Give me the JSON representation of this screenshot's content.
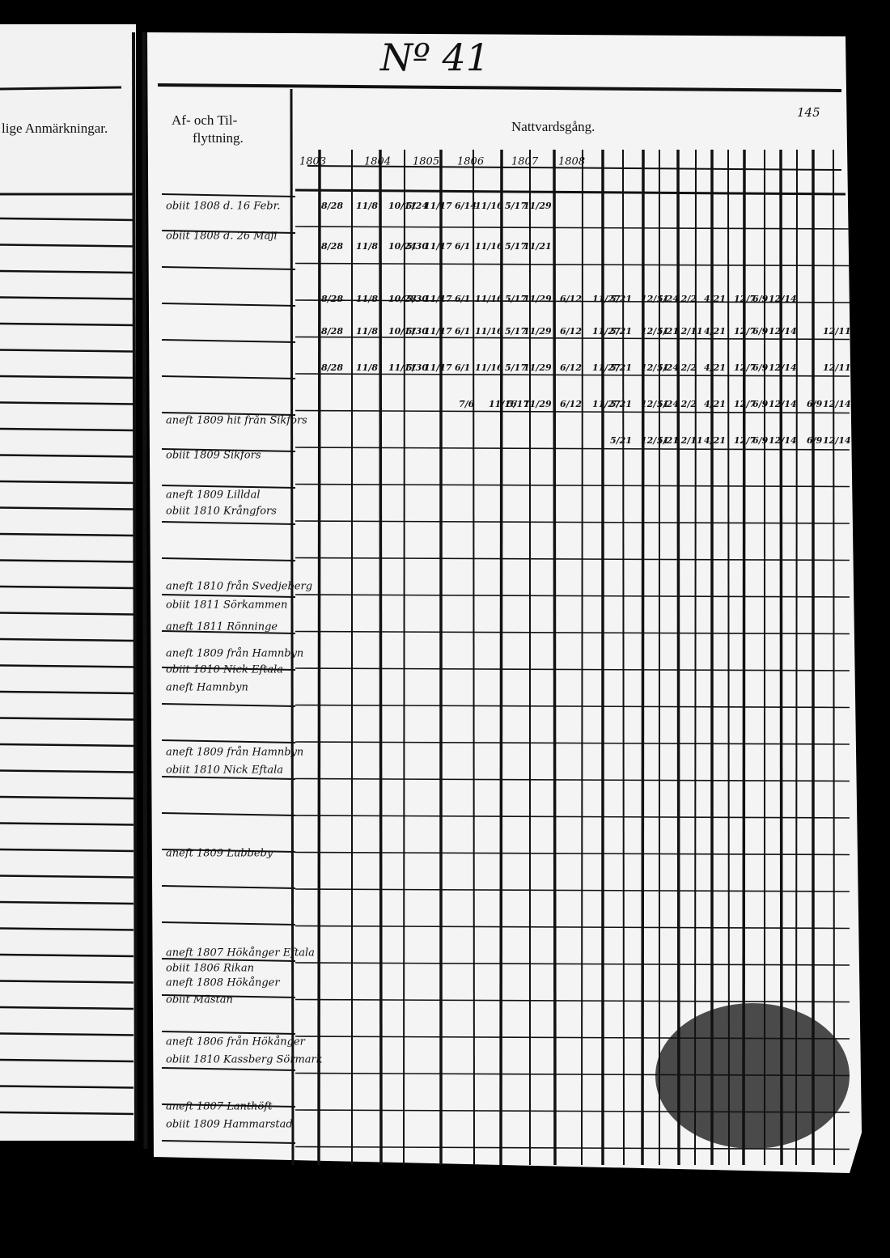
{
  "page_number": "Nº 41",
  "folio": "145",
  "left_page": {
    "heading": "lige Anmärkningar."
  },
  "right_page": {
    "moving_heading": [
      "Af- och Til-",
      "flyttning."
    ],
    "communion_heading": "Nattvardsgång.",
    "years": [
      "1803",
      "1804",
      "1805",
      "1806",
      "1807",
      "1808"
    ],
    "entries": [
      "obiit 1808 d. 16 Febr.",
      "obiit 1808 d. 26 Maji",
      "aneft 1809 hit från Sikfors",
      "obiit 1809 Sikfors",
      "aneft 1809 Lilldal",
      "obiit 1810 Krångfors",
      "aneft 1810 från Svedjeberg",
      "obiit 1811 Sörkammen",
      "aneft 1811 Rönninge",
      "aneft 1809 från Hamnbyn",
      "obiit 1810 Nick Eftala",
      "aneft Hamnbyn",
      "aneft 1809 från Hamnbyn",
      "obiit 1810 Nick Eftala",
      "aneft 1809 Lubbeby",
      "aneft 1807 Hökånger Eftala",
      "obiit 1806 Rikan",
      "aneft 1808 Hökånger",
      "obiit Mästan",
      "aneft 1806 från Hökånger",
      "obiit 1810 Kassberg Sörmark",
      "aneft 1807 Lanthöft",
      "obiit 1809 Hammarstad"
    ],
    "communion_rows": [
      [
        "8/28",
        "11/8",
        "10/11",
        "5/24",
        "11/17",
        "6/14",
        "11/16",
        "5/17",
        "11/29"
      ],
      [
        "8/28",
        "11/8",
        "10/24",
        "5/30",
        "11/17",
        "6/1",
        "11/16",
        "5/17",
        "11/21"
      ],
      [
        "8/28",
        "11/8",
        "10/28",
        "5/30",
        "11/17",
        "6/1",
        "11/16",
        "5/17",
        "11/29",
        "6/12",
        "11/27",
        "5/21",
        "12/11",
        "5/24",
        "12/2",
        "4/21",
        "12/7",
        "6/9",
        "12/14"
      ],
      [
        "8/28",
        "11/8",
        "10/11",
        "5/30",
        "11/17",
        "6/1",
        "11/16",
        "5/17",
        "11/29",
        "6/12",
        "11/27",
        "5/21",
        "12/11",
        "5/21",
        "12/11",
        "4/21",
        "12/7",
        "6/9",
        "12/14",
        "12/11"
      ],
      [
        "8/28",
        "11/8",
        "11/11",
        "5/30",
        "11/17",
        "6/1",
        "11/16",
        "5/17",
        "11/29",
        "6/12",
        "11/27",
        "5/21",
        "12/11",
        "5/24",
        "12/2",
        "4/21",
        "12/7",
        "6/9",
        "12/14",
        "12/11"
      ],
      [
        "7/6",
        "11/16",
        "5/17",
        "11/29",
        "6/12",
        "11/27",
        "5/21",
        "12/11",
        "5/24",
        "12/2",
        "4/21",
        "12/7",
        "6/9",
        "12/14",
        "6/9",
        "12/14"
      ],
      [
        "5/21",
        "12/11",
        "5/21",
        "12/11",
        "4/21",
        "12/7",
        "6/9",
        "12/14",
        "6/9",
        "12/14"
      ]
    ]
  }
}
